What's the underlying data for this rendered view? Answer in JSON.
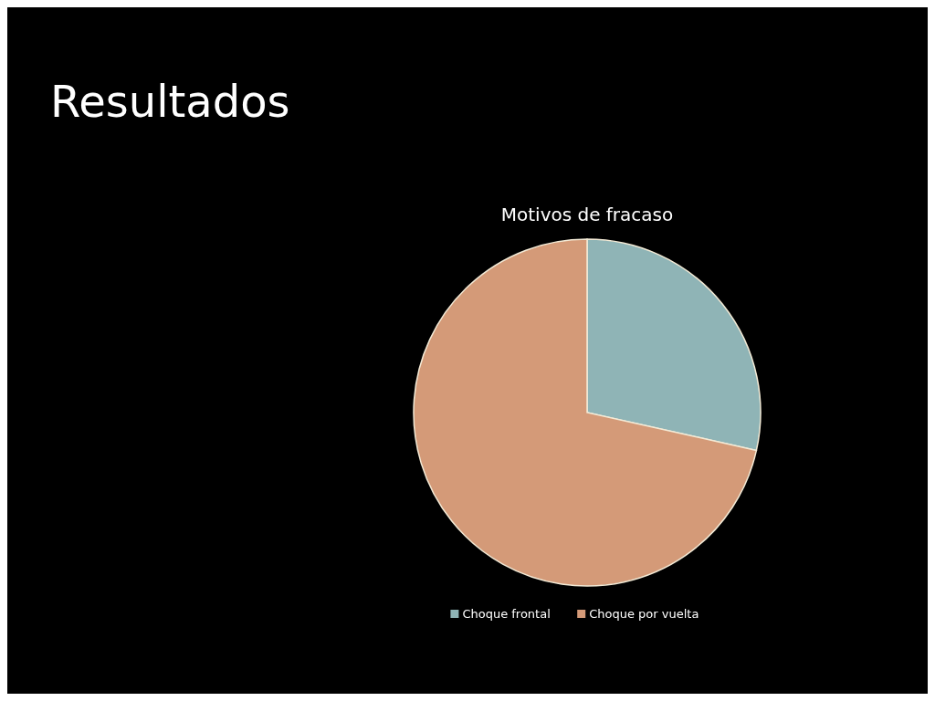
{
  "chart_data": {
    "type": "pie",
    "title": "Resultados",
    "subtitle": "Motivos de fracaso",
    "categories": [
      "Choque frontal",
      "Choque por vuelta"
    ],
    "values": [
      28.5,
      71.5
    ],
    "colors": [
      "#8fb4b6",
      "#d49a78"
    ],
    "legend": "bottom"
  }
}
